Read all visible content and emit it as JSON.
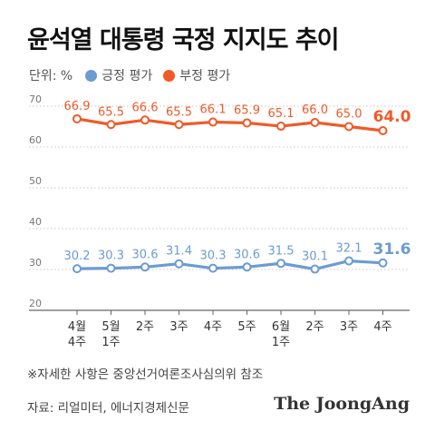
{
  "chart_data": {
    "type": "line",
    "title": "윤석열 대통령 국정 지지도 추이",
    "unit_label": "단위: %",
    "categories": [
      [
        "4월",
        "4주"
      ],
      [
        "5월",
        "1주"
      ],
      [
        "2주"
      ],
      [
        "3주"
      ],
      [
        "4주"
      ],
      [
        "5주"
      ],
      [
        "6월",
        "1주"
      ],
      [
        "2주"
      ],
      [
        "3주"
      ],
      [
        "4주"
      ]
    ],
    "series": [
      {
        "name": "긍정 평가",
        "color": "#6b9bd2",
        "values": [
          30.2,
          30.3,
          30.6,
          31.4,
          30.3,
          30.6,
          31.5,
          30.1,
          32.1,
          31.6
        ]
      },
      {
        "name": "부정 평가",
        "color": "#f05a28",
        "values": [
          66.9,
          65.5,
          66.6,
          65.5,
          66.1,
          65.9,
          65.1,
          66.0,
          65.0,
          64.0
        ]
      }
    ],
    "yticks": [
      20,
      30,
      40,
      50,
      60,
      70
    ],
    "ylim": [
      20,
      70
    ],
    "grid": true,
    "legend_position": "top-left"
  },
  "note": "※자세한 사항은 중앙선거여론조사심의위 참조",
  "source": "자료: 리얼미터, 에너지경제신문",
  "brand": "The JoongAng"
}
